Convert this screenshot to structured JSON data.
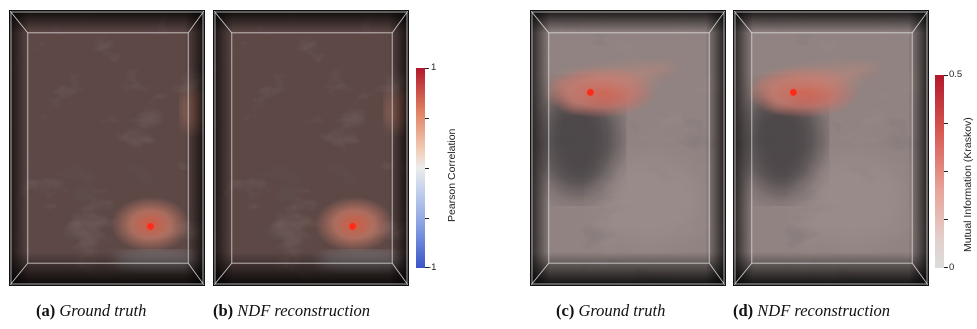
{
  "figure": {
    "captions": [
      {
        "letter": "(a)",
        "text": "Ground truth"
      },
      {
        "letter": "(b)",
        "text": "NDF reconstruction"
      },
      {
        "letter": "(c)",
        "text": "Ground truth"
      },
      {
        "letter": "(d)",
        "text": "NDF reconstruction"
      }
    ],
    "colorbars": [
      {
        "title": "Pearson Correlation",
        "max_label": "1",
        "min_label": "-1",
        "colors": [
          "#b2182b",
          "#ececec",
          "#3a55c8"
        ]
      },
      {
        "title": "Mutual Information (Kraskov)",
        "max_label": "0.5",
        "min_label": "0",
        "colors": [
          "#b2182b",
          "#dcdcdc"
        ]
      }
    ]
  }
}
